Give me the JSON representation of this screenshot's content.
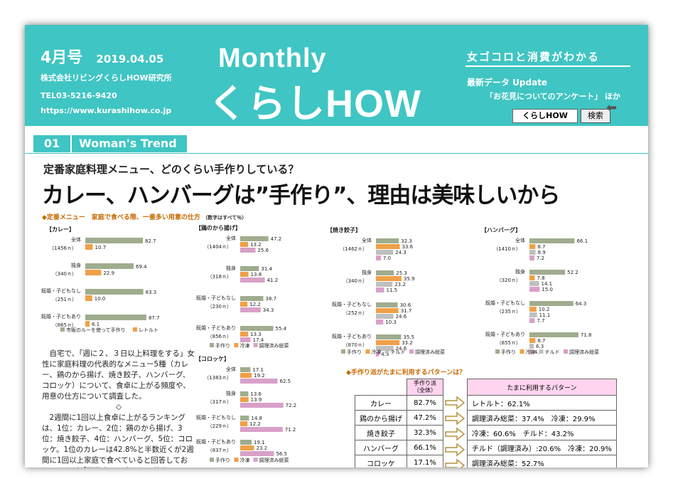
{
  "header": {
    "issue": "4月号",
    "date": "2019.04.05",
    "company": "株式会社リビングくらしHOW研究所",
    "tel": "TEL03-5216-9420",
    "url": "https://www.kurashihow.co.jp",
    "monthly": "Monthly",
    "brand": "くらしHOW",
    "tagline": "女ゴコロと消費がわかる",
    "latest": "最新データ Update",
    "latest_item": "「お花見についてのアンケート」 ほか",
    "search_value": "くらしHOW",
    "search_button": "検索"
  },
  "section": {
    "number": "01",
    "name": "Woman's Trend"
  },
  "article": {
    "subtitle": "定番家庭料理メニュー、どのくらい手作りしている？",
    "headline": "カレー、ハンバーグは”手作り”、理由は美味しいから",
    "chart_title": "◆定番メニュー　家庭で食べる際、一番多い用意の仕方",
    "chart_note": "（数字はすべて％）",
    "body1": "自宅で、「週に２、３日以上料理をする」女性に家庭料理の代表的なメニュー5種（カレー、鶏のから揚げ、焼き餃子、ハンバーグ、コロッケ）について、食卓に上がる頻度や、用意の仕方について調査した。",
    "diamond": "◇",
    "body2": "2週間に1回以上食卓に上がるランキングは、1位：カレー、2位：鶏のから揚げ、3位：焼き餃子、4位：ハンバーグ、5位：コロッケ。1位のカレーは42.8%と半数近くが2週間に1回以上家庭で食べていると回答しており、さすが「国民食」と言われる結果に。"
  },
  "colors": {
    "homemade": "#9fad8e",
    "frozen": "#f0a046",
    "chilled": "#bfbfbf",
    "deli": "#d9a0c8",
    "teal": "#3fc5c3"
  },
  "chart_data": [
    {
      "type": "bar",
      "title": "【カレー】",
      "categories": [
        "全体",
        "独身",
        "既婚・子どもなし",
        "既婚・子どもあり"
      ],
      "counts": [
        "1456ｎ",
        "340ｎ",
        "251ｎ",
        "865ｎ"
      ],
      "series": [
        {
          "name": "市販のルーを使って手作り",
          "values": [
            82.7,
            69.4,
            83.3,
            87.7
          ]
        },
        {
          "name": "レトルト",
          "values": [
            10.7,
            22.9,
            10.0,
            6.1
          ]
        }
      ]
    },
    {
      "type": "bar",
      "title": "【鶏のから揚げ】",
      "categories": [
        "全体",
        "独身",
        "既婚・子どもなし",
        "既婚・子どもあり"
      ],
      "counts": [
        "1404ｎ",
        "318ｎ",
        "230ｎ",
        "856ｎ"
      ],
      "series": [
        {
          "name": "手作り",
          "values": [
            47.2,
            31.4,
            38.7,
            55.4
          ]
        },
        {
          "name": "冷凍",
          "values": [
            13.2,
            13.8,
            12.2,
            13.3
          ]
        },
        {
          "name": "調理済み総菜",
          "values": [
            25.6,
            41.2,
            34.3,
            17.4
          ]
        }
      ]
    },
    {
      "type": "bar",
      "title": "【焼き餃子】",
      "categories": [
        "全体",
        "独身",
        "既婚・子どもなし",
        "既婚・子どもあり"
      ],
      "counts": [
        "1462ｎ",
        "340ｎ",
        "252ｎ",
        "870ｎ"
      ],
      "series": [
        {
          "name": "手作り",
          "values": [
            32.3,
            25.3,
            30.6,
            35.5
          ]
        },
        {
          "name": "冷凍",
          "values": [
            33.6,
            35.9,
            31.7,
            33.2
          ]
        },
        {
          "name": "チルド",
          "values": [
            24.3,
            23.2,
            24.6,
            24.6
          ]
        },
        {
          "name": "調理済み総菜",
          "values": [
            7.0,
            11.5,
            10.3,
            4.3
          ]
        }
      ]
    },
    {
      "type": "bar",
      "title": "【ハンバーグ】",
      "categories": [
        "全体",
        "独身",
        "既婚・子どもなし",
        "既婚・子どもあり"
      ],
      "counts": [
        "1410ｎ",
        "320ｎ",
        "235ｎ",
        "855ｎ"
      ],
      "series": [
        {
          "name": "手作り",
          "values": [
            66.1,
            52.2,
            64.3,
            71.8
          ]
        },
        {
          "name": "冷凍",
          "values": [
            8.7,
            7.8,
            10.2,
            8.7
          ]
        },
        {
          "name": "チルド",
          "values": [
            8.9,
            14.1,
            11.1,
            6.3
          ]
        },
        {
          "name": "調理済み総菜",
          "values": [
            7.2,
            15.0,
            7.7,
            4.1
          ]
        }
      ]
    },
    {
      "type": "bar",
      "title": "【コロッケ】",
      "categories": [
        "全体",
        "独身",
        "既婚・子どもなし",
        "既婚・子どもあり"
      ],
      "counts": [
        "1383ｎ",
        "317ｎ",
        "229ｎ",
        "837ｎ"
      ],
      "series": [
        {
          "name": "手作り",
          "values": [
            17.1,
            13.6,
            14.8,
            19.1
          ]
        },
        {
          "name": "冷凍",
          "values": [
            19.2,
            13.9,
            12.2,
            23.2
          ]
        },
        {
          "name": "調理済み総菜",
          "values": [
            62.5,
            72.2,
            71.2,
            56.5
          ]
        }
      ]
    }
  ],
  "table": {
    "title": "◆手作り派がたまに利用するパターンは？",
    "col_header": "手作り派",
    "col_sub": "（全体）",
    "pattern_header": "たまに利用するパターン",
    "rows": [
      {
        "label": "カレー",
        "value": "82.7%",
        "pattern": "レトルト：62.1%"
      },
      {
        "label": "鶏のから揚げ",
        "value": "47.2%",
        "pattern": "調理済み総菜：37.4%　冷凍：29.9%"
      },
      {
        "label": "焼き餃子",
        "value": "32.3%",
        "pattern": "冷凍：60.6%　チルド：43.2%"
      },
      {
        "label": "ハンバーグ",
        "value": "66.1%",
        "pattern": "チルド（調理済み）:20.6%　冷凍：20.9%"
      },
      {
        "label": "コロッケ",
        "value": "17.1%",
        "pattern": "調理済み総菜：52.7%"
      }
    ]
  }
}
